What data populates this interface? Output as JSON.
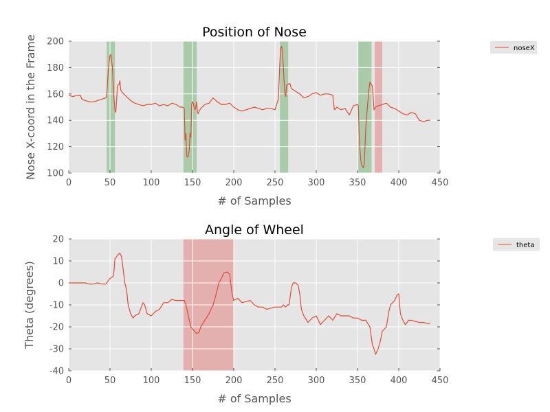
{
  "chart_data": [
    {
      "type": "line",
      "title": "Position of Nose",
      "xlabel": "# of Samples",
      "ylabel": "Nose X-coord in the Frame",
      "xlim": [
        0,
        450
      ],
      "ylim": [
        100,
        200
      ],
      "xticks": [
        0,
        50,
        100,
        150,
        200,
        250,
        300,
        350,
        400,
        450
      ],
      "yticks": [
        100,
        120,
        140,
        160,
        180,
        200
      ],
      "grid": true,
      "legend_position": "outside-top-right",
      "series": [
        {
          "name": "noseX",
          "color": "#e24a33",
          "x": [
            0,
            5,
            10,
            14,
            16,
            20,
            25,
            30,
            35,
            40,
            45,
            46,
            48,
            50,
            51,
            53,
            54,
            55,
            56,
            57,
            58,
            59,
            60,
            61,
            62,
            63,
            64,
            65,
            70,
            75,
            80,
            85,
            90,
            95,
            100,
            105,
            110,
            115,
            120,
            125,
            130,
            135,
            138,
            140,
            141,
            142,
            143,
            144,
            145,
            146,
            147,
            148,
            149,
            150,
            151,
            152,
            153,
            154,
            155,
            156,
            157,
            158,
            160,
            165,
            170,
            175,
            180,
            185,
            190,
            195,
            200,
            205,
            210,
            215,
            220,
            225,
            230,
            235,
            240,
            245,
            250,
            252,
            254,
            255,
            256,
            257,
            258,
            259,
            260,
            261,
            262,
            263,
            264,
            265,
            268,
            270,
            275,
            280,
            285,
            290,
            295,
            300,
            305,
            310,
            315,
            320,
            322,
            325,
            330,
            335,
            340,
            345,
            350,
            351,
            352,
            353,
            354,
            355,
            356,
            357,
            358,
            359,
            360,
            362,
            364,
            365,
            366,
            367,
            368,
            370,
            372,
            375,
            380,
            385,
            390,
            395,
            400,
            405,
            410,
            415,
            420,
            425,
            430,
            435,
            438
          ],
          "y": [
            159,
            158,
            159,
            159,
            156,
            155,
            154,
            154,
            155,
            156,
            157,
            159,
            178,
            189,
            190,
            180,
            165,
            155,
            148,
            146,
            155,
            166,
            167,
            167,
            170,
            163,
            162,
            161,
            158,
            155,
            153,
            152,
            151,
            152,
            152,
            153,
            151,
            152,
            151,
            153,
            152,
            150,
            150,
            149,
            125,
            130,
            113,
            112,
            113,
            117,
            130,
            127,
            152,
            154,
            153,
            150,
            148,
            150,
            154,
            146,
            145,
            147,
            149,
            152,
            153,
            157,
            154,
            152,
            152,
            153,
            150,
            148,
            147,
            148,
            149,
            150,
            149,
            148,
            149,
            149,
            148,
            152,
            156,
            170,
            185,
            195,
            196,
            192,
            182,
            170,
            160,
            158,
            166,
            167,
            168,
            164,
            162,
            160,
            157,
            158,
            160,
            161,
            159,
            160,
            160,
            159,
            148,
            150,
            148,
            149,
            144,
            151,
            152,
            151,
            130,
            118,
            110,
            106,
            105,
            104,
            106,
            118,
            134,
            150,
            164,
            169,
            168,
            167,
            166,
            148,
            150,
            151,
            152,
            153,
            150,
            149,
            147,
            145,
            144,
            146,
            145,
            140,
            139,
            140,
            140
          ]
        }
      ],
      "shaded_regions": [
        {
          "x0": 46,
          "x1": 56,
          "color": "#3c9a3c"
        },
        {
          "x0": 139,
          "x1": 155,
          "color": "#3c9a3c"
        },
        {
          "x0": 256,
          "x1": 266,
          "color": "#3c9a3c"
        },
        {
          "x0": 351,
          "x1": 367,
          "color": "#3c9a3c"
        },
        {
          "x0": 371,
          "x1": 380,
          "color": "#e24a4a"
        }
      ]
    },
    {
      "type": "line",
      "title": "Angle of Wheel",
      "xlabel": "# of Samples",
      "ylabel": "Theta (degrees)",
      "xlim": [
        0,
        450
      ],
      "ylim": [
        -40,
        20
      ],
      "xticks": [
        0,
        50,
        100,
        150,
        200,
        250,
        300,
        350,
        400,
        450
      ],
      "yticks": [
        -40,
        -30,
        -20,
        -10,
        0,
        10,
        20
      ],
      "grid": true,
      "legend_position": "outside-top-right",
      "series": [
        {
          "name": "theta",
          "color": "#e24a33",
          "x": [
            0,
            10,
            20,
            25,
            30,
            35,
            40,
            45,
            46,
            48,
            50,
            54,
            55,
            56,
            58,
            60,
            62,
            64,
            65,
            66,
            68,
            70,
            72,
            75,
            78,
            80,
            85,
            88,
            90,
            92,
            95,
            100,
            105,
            110,
            115,
            120,
            125,
            130,
            135,
            138,
            140,
            142,
            145,
            148,
            150,
            155,
            158,
            160,
            165,
            170,
            175,
            178,
            180,
            182,
            185,
            188,
            192,
            195,
            198,
            200,
            205,
            210,
            220,
            225,
            230,
            235,
            240,
            250,
            255,
            258,
            260,
            263,
            265,
            267,
            270,
            272,
            275,
            278,
            280,
            282,
            285,
            290,
            295,
            300,
            305,
            310,
            315,
            320,
            325,
            330,
            335,
            340,
            345,
            350,
            355,
            360,
            365,
            368,
            370,
            372,
            375,
            378,
            380,
            385,
            388,
            390,
            395,
            398,
            400,
            402,
            405,
            408,
            410,
            412,
            415,
            420,
            425,
            430,
            435,
            438
          ],
          "y": [
            0,
            0,
            0,
            -0.5,
            -0.5,
            0,
            -0.5,
            -0.5,
            0,
            1,
            2,
            3,
            6,
            11,
            12,
            13,
            13.5,
            12,
            9,
            6,
            0,
            -3,
            -10,
            -14,
            -16,
            -15,
            -14,
            -11,
            -9,
            -10,
            -14,
            -15,
            -13,
            -12,
            -9,
            -9,
            -7.5,
            -8,
            -8,
            -8,
            -8,
            -10,
            -15,
            -20,
            -21,
            -23,
            -22.5,
            -20,
            -17,
            -14,
            -10,
            -6,
            -3,
            0,
            2,
            4.5,
            5,
            4,
            -5,
            -8,
            -7,
            -9,
            -8,
            -10,
            -11,
            -11,
            -12,
            -11,
            -11,
            -11,
            -10,
            -11,
            -10,
            -10,
            -2,
            0,
            0,
            -1,
            -5,
            -12,
            -15,
            -18,
            -16,
            -15,
            -19,
            -17,
            -15,
            -17,
            -14,
            -15,
            -15,
            -15,
            -16,
            -16,
            -17,
            -17,
            -20,
            -28,
            -30,
            -32.5,
            -30,
            -26,
            -22,
            -20,
            -13,
            -10,
            -8,
            -5.5,
            -5,
            -14,
            -17,
            -19,
            -18,
            -17,
            -17,
            -17.5,
            -18,
            -18,
            -18.5,
            -18.5
          ]
        }
      ],
      "shaded_regions": [
        {
          "x0": 139,
          "x1": 200,
          "color": "#e24a4a"
        }
      ]
    }
  ]
}
